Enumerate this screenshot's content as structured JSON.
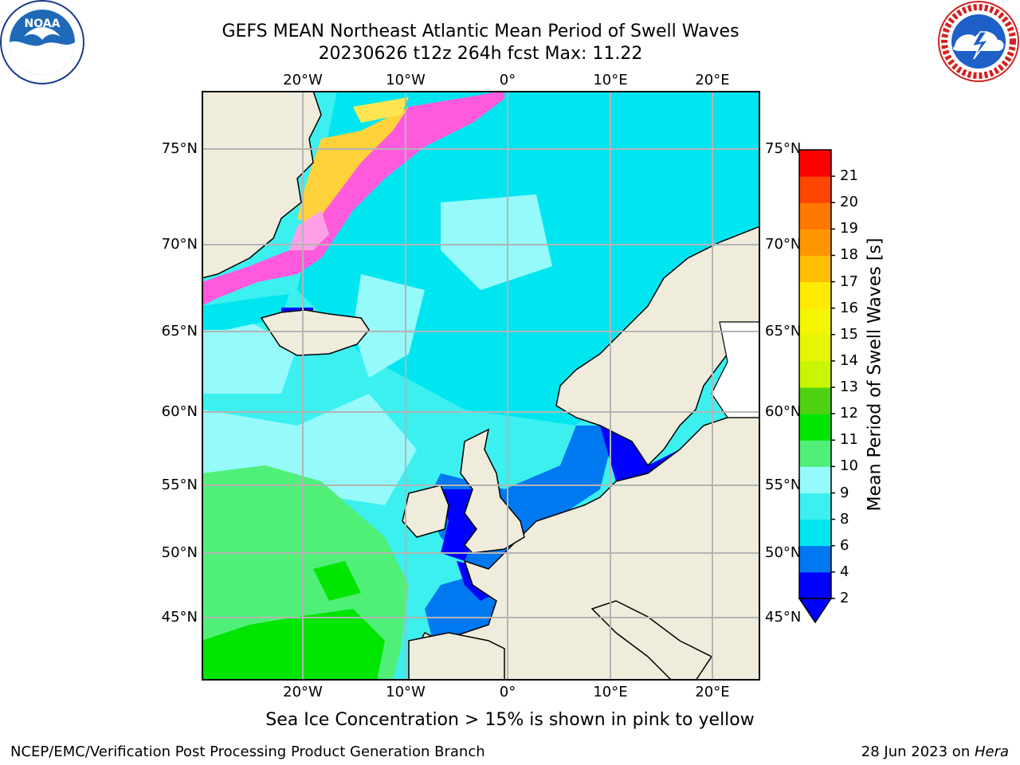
{
  "title": {
    "line1": "GEFS MEAN Northeast Atlantic Mean Period of Swell Waves",
    "line2": "20230626 t12z 264h fcst   Max: 11.22"
  },
  "map": {
    "lon_labels": [
      "20°W",
      "10°W",
      "0°",
      "10°E",
      "20°E"
    ],
    "lat_labels": [
      "75°N",
      "70°N",
      "65°N",
      "60°N",
      "55°N",
      "50°N",
      "45°N"
    ],
    "colors": {
      "land": "#efecdc",
      "ice_pink": "#ff5adc",
      "ice_yellow": "#ffd23c",
      "grid": "#b4b4b4"
    }
  },
  "colorbar": {
    "title": "Mean Period of Swell Waves [s]",
    "ticks": [
      "21",
      "20",
      "19",
      "18",
      "17",
      "16",
      "15",
      "14",
      "13",
      "12",
      "11",
      "10",
      "9",
      "8",
      "7",
      "6",
      "5",
      "4",
      "3",
      "2"
    ],
    "tick_labels": [
      "21",
      "20",
      "19",
      "18",
      "17",
      "16",
      "15",
      "14",
      "13",
      "12",
      "11",
      "10",
      "9",
      "8",
      "6",
      "4",
      "2"
    ],
    "colors": [
      "#0000ff",
      "#0078f0",
      "#00e6f0",
      "#3cf0f0",
      "#96fafa",
      "#50f078",
      "#00e600",
      "#50d214",
      "#c8f500",
      "#e6f500",
      "#f5f500",
      "#ffeb00",
      "#ffbe00",
      "#ff9600",
      "#ff7800",
      "#ff4600",
      "#ff0000"
    ]
  },
  "caption": "Sea Ice Concentration > 15% is shown in pink to yellow",
  "footer": {
    "left": "NCEP/EMC/Verification Post Processing Product Generation Branch",
    "date": "28 Jun 2023 on ",
    "host": "Hera"
  }
}
